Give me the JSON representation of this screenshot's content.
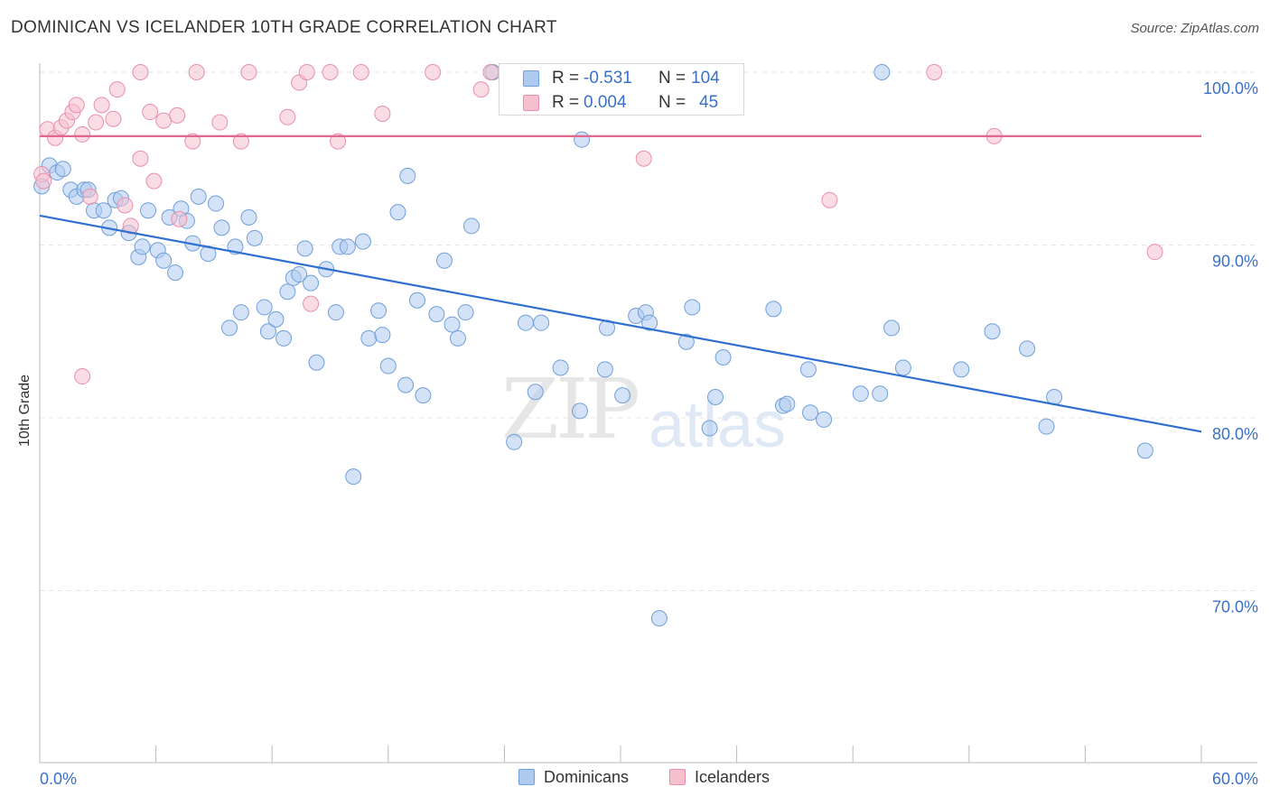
{
  "title": "DOMINICAN VS ICELANDER 10TH GRADE CORRELATION CHART",
  "source": "Source: ZipAtlas.com",
  "legend_stats": [
    {
      "r_label": "R =",
      "r_value": "-0.531",
      "n_label": "N =",
      "n_value": "104"
    },
    {
      "r_label": "R =",
      "r_value": "0.004",
      "n_label": "N =",
      "n_value": "45"
    }
  ],
  "watermark": {
    "part1": "ZIP",
    "part2": "atlas"
  },
  "colors": {
    "dominicans_fill": "#aecbef",
    "dominicans_stroke": "#6f9fdb",
    "dominicans_line": "#2e6fd0",
    "icelanders_fill": "#f6c0cf",
    "icelanders_stroke": "#e890aa",
    "icelanders_line": "#e0668e",
    "axis_text": "#3a70c8"
  },
  "chart_data": {
    "type": "scatter",
    "title": "DOMINICAN VS ICELANDER 10TH GRADE CORRELATION CHART",
    "xlabel": "",
    "ylabel": "10th Grade",
    "xlim": [
      0,
      60
    ],
    "ylim": [
      60.5,
      101
    ],
    "x_tick_labels": [
      "0.0%",
      "60.0%"
    ],
    "y_ticks": [
      70,
      80,
      90,
      100
    ],
    "y_tick_labels": [
      "70.0%",
      "80.0%",
      "90.0%",
      "100.0%"
    ],
    "grid": true,
    "legend_position": "bottom-center",
    "series": [
      {
        "name": "Dominicans",
        "trend": {
          "x": [
            0,
            60
          ],
          "y": [
            91.7,
            79.2
          ]
        },
        "points": [
          [
            0.1,
            93.4
          ],
          [
            0.5,
            94.6
          ],
          [
            0.9,
            94.2
          ],
          [
            1.2,
            94.4
          ],
          [
            1.6,
            93.2
          ],
          [
            1.9,
            92.8
          ],
          [
            2.3,
            93.2
          ],
          [
            2.5,
            93.2
          ],
          [
            2.8,
            92.0
          ],
          [
            3.3,
            92.0
          ],
          [
            3.6,
            91.0
          ],
          [
            3.9,
            92.6
          ],
          [
            4.2,
            92.7
          ],
          [
            4.6,
            90.7
          ],
          [
            5.1,
            89.3
          ],
          [
            5.3,
            89.9
          ],
          [
            5.6,
            92.0
          ],
          [
            6.1,
            89.7
          ],
          [
            6.4,
            89.1
          ],
          [
            6.7,
            91.6
          ],
          [
            7.0,
            88.4
          ],
          [
            7.3,
            92.1
          ],
          [
            7.6,
            91.4
          ],
          [
            7.9,
            90.1
          ],
          [
            8.2,
            92.8
          ],
          [
            8.7,
            89.5
          ],
          [
            9.1,
            92.4
          ],
          [
            9.4,
            91.0
          ],
          [
            9.8,
            85.2
          ],
          [
            10.1,
            89.9
          ],
          [
            10.4,
            86.1
          ],
          [
            10.8,
            91.6
          ],
          [
            11.1,
            90.4
          ],
          [
            11.6,
            86.4
          ],
          [
            11.8,
            85.0
          ],
          [
            12.2,
            85.7
          ],
          [
            12.6,
            84.6
          ],
          [
            12.8,
            87.3
          ],
          [
            13.1,
            88.1
          ],
          [
            13.4,
            88.3
          ],
          [
            13.7,
            89.8
          ],
          [
            14.0,
            87.8
          ],
          [
            14.3,
            83.2
          ],
          [
            14.8,
            88.6
          ],
          [
            15.3,
            86.1
          ],
          [
            15.5,
            89.9
          ],
          [
            15.9,
            89.9
          ],
          [
            16.2,
            76.6
          ],
          [
            16.7,
            90.2
          ],
          [
            17.0,
            84.6
          ],
          [
            17.5,
            86.2
          ],
          [
            17.7,
            84.8
          ],
          [
            18.0,
            83.0
          ],
          [
            18.5,
            91.9
          ],
          [
            18.9,
            81.9
          ],
          [
            19.0,
            94.0
          ],
          [
            19.5,
            86.8
          ],
          [
            19.8,
            81.3
          ],
          [
            20.5,
            86.0
          ],
          [
            20.9,
            89.1
          ],
          [
            21.3,
            85.4
          ],
          [
            21.6,
            84.6
          ],
          [
            22.0,
            86.1
          ],
          [
            22.3,
            91.1
          ],
          [
            23.4,
            100.0
          ],
          [
            24.4,
            100.0
          ],
          [
            24.5,
            78.6
          ],
          [
            25.1,
            85.5
          ],
          [
            25.6,
            81.5
          ],
          [
            25.9,
            85.5
          ],
          [
            26.9,
            82.9
          ],
          [
            27.9,
            80.4
          ],
          [
            28.0,
            96.1
          ],
          [
            29.2,
            82.8
          ],
          [
            29.3,
            85.2
          ],
          [
            30.1,
            81.3
          ],
          [
            30.8,
            85.9
          ],
          [
            31.3,
            86.1
          ],
          [
            31.5,
            85.5
          ],
          [
            32.0,
            68.4
          ],
          [
            32.7,
            100.0
          ],
          [
            33.4,
            84.4
          ],
          [
            33.7,
            86.4
          ],
          [
            34.6,
            79.4
          ],
          [
            34.9,
            81.2
          ],
          [
            35.3,
            83.5
          ],
          [
            37.9,
            86.3
          ],
          [
            38.4,
            80.7
          ],
          [
            38.6,
            80.8
          ],
          [
            39.7,
            82.8
          ],
          [
            39.8,
            80.3
          ],
          [
            40.5,
            79.9
          ],
          [
            42.4,
            81.4
          ],
          [
            43.5,
            100.0
          ],
          [
            43.4,
            81.4
          ],
          [
            44.0,
            85.2
          ],
          [
            44.6,
            82.9
          ],
          [
            47.6,
            82.8
          ],
          [
            49.2,
            85.0
          ],
          [
            51.0,
            84.0
          ],
          [
            52.0,
            79.5
          ],
          [
            52.4,
            81.2
          ],
          [
            57.1,
            78.1
          ]
        ]
      },
      {
        "name": "Icelanders",
        "trend": {
          "x": [
            0,
            60
          ],
          "y": [
            96.3,
            96.3
          ]
        },
        "points": [
          [
            0.1,
            94.1
          ],
          [
            0.2,
            93.7
          ],
          [
            0.4,
            96.7
          ],
          [
            0.8,
            96.2
          ],
          [
            1.1,
            96.8
          ],
          [
            1.4,
            97.2
          ],
          [
            1.7,
            97.7
          ],
          [
            1.9,
            98.1
          ],
          [
            2.2,
            96.4
          ],
          [
            2.9,
            97.1
          ],
          [
            3.2,
            98.1
          ],
          [
            3.8,
            97.3
          ],
          [
            4.0,
            99.0
          ],
          [
            4.4,
            92.3
          ],
          [
            4.7,
            91.1
          ],
          [
            5.2,
            95.0
          ],
          [
            5.2,
            100.0
          ],
          [
            5.7,
            97.7
          ],
          [
            5.9,
            93.7
          ],
          [
            6.4,
            97.2
          ],
          [
            7.1,
            97.5
          ],
          [
            7.2,
            91.5
          ],
          [
            7.9,
            96.0
          ],
          [
            8.1,
            100.0
          ],
          [
            9.3,
            97.1
          ],
          [
            10.4,
            96.0
          ],
          [
            10.8,
            100.0
          ],
          [
            12.8,
            97.4
          ],
          [
            13.4,
            99.4
          ],
          [
            13.8,
            100.0
          ],
          [
            14.0,
            86.6
          ],
          [
            15.0,
            100.0
          ],
          [
            15.4,
            96.0
          ],
          [
            16.6,
            100.0
          ],
          [
            17.7,
            97.6
          ],
          [
            20.3,
            100.0
          ],
          [
            22.8,
            99.0
          ],
          [
            23.3,
            100.0
          ],
          [
            31.2,
            95.0
          ],
          [
            40.8,
            92.6
          ],
          [
            46.2,
            100.0
          ],
          [
            49.3,
            96.3
          ],
          [
            57.6,
            89.6
          ],
          [
            2.2,
            82.4
          ],
          [
            2.6,
            92.8
          ]
        ]
      }
    ]
  },
  "bottom_legend": [
    {
      "label": "Dominicans"
    },
    {
      "label": "Icelanders"
    }
  ]
}
